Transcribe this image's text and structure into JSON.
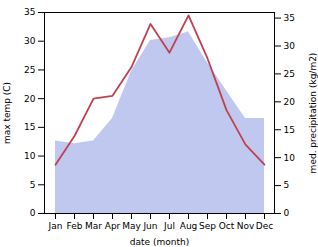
{
  "chart_data": {
    "type": "combo",
    "categories": [
      "Jan",
      "Feb",
      "Mar",
      "Apr",
      "May",
      "Jun",
      "Jul",
      "Aug",
      "Sep",
      "Oct",
      "Nov",
      "Dec"
    ],
    "series": [
      {
        "type": "area",
        "axis": "y2",
        "color": "#c0c8f0",
        "values": [
          13.0,
          12.5,
          13.0,
          17.0,
          25.5,
          31.0,
          31.5,
          32.5,
          27.0,
          22.0,
          17.0,
          17.0
        ]
      },
      {
        "type": "line",
        "color": "#c0414e",
        "values": [
          8.5,
          13.5,
          20.0,
          20.5,
          25.5,
          33.0,
          28.0,
          34.5,
          27.0,
          18.0,
          12.0,
          8.5
        ]
      }
    ],
    "xlabel": "date (month)",
    "ylabel": "max temp (C)",
    "y2label": "med. precipitation (kg/m2)",
    "ylim": [
      0,
      35
    ],
    "yticks": [
      0,
      5,
      10,
      15,
      20,
      25,
      30,
      35
    ],
    "y2lim": [
      0,
      36
    ],
    "y2ticks": [
      0,
      5,
      10,
      15,
      20,
      25,
      30,
      35
    ],
    "grid": false
  }
}
